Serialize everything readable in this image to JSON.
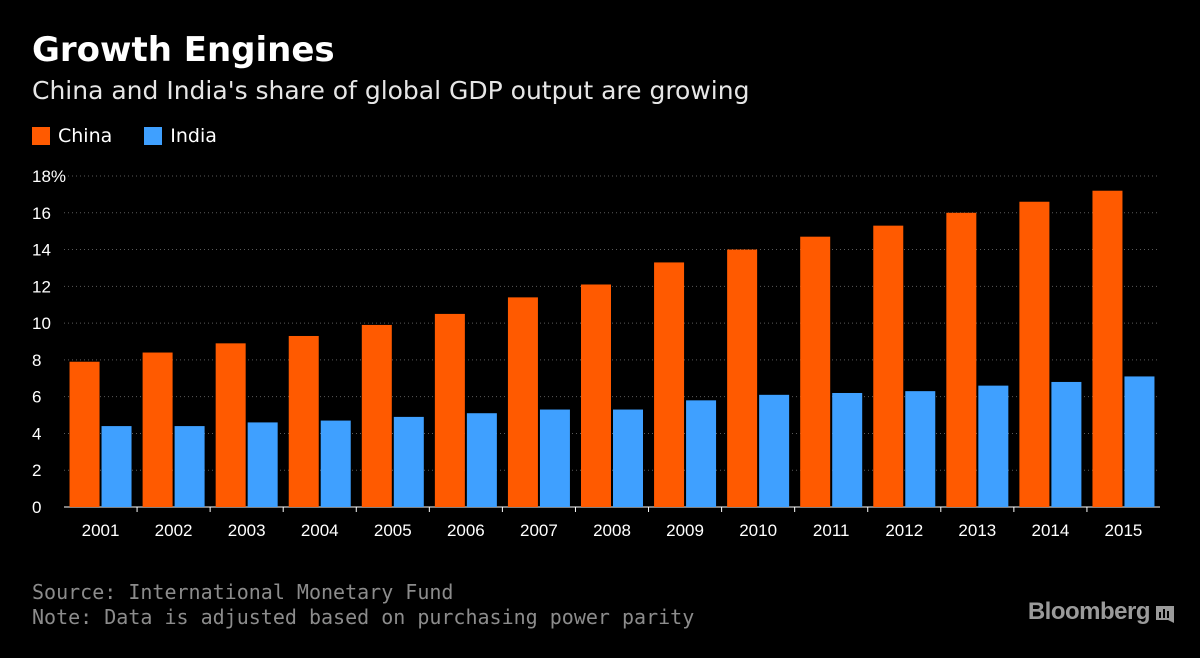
{
  "chart_data": {
    "type": "bar",
    "title": "Growth Engines",
    "subtitle": "China and India's share of global GDP output are growing",
    "categories": [
      "2001",
      "2002",
      "2003",
      "2004",
      "2005",
      "2006",
      "2007",
      "2008",
      "2009",
      "2010",
      "2011",
      "2012",
      "2013",
      "2014",
      "2015"
    ],
    "series": [
      {
        "name": "China",
        "color": "#ff5a00",
        "values": [
          7.9,
          8.4,
          8.9,
          9.3,
          9.9,
          10.5,
          11.4,
          12.1,
          13.3,
          14.0,
          14.7,
          15.3,
          16.0,
          16.6,
          17.2
        ]
      },
      {
        "name": "India",
        "color": "#3fa0ff",
        "values": [
          4.4,
          4.4,
          4.6,
          4.7,
          4.9,
          5.1,
          5.3,
          5.3,
          5.8,
          6.1,
          6.2,
          6.3,
          6.6,
          6.8,
          7.1
        ]
      }
    ],
    "ylim": [
      0,
      18
    ],
    "yticks": [
      "0",
      "2",
      "4",
      "6",
      "8",
      "10",
      "12",
      "14",
      "16",
      "18%"
    ],
    "grid": true,
    "legend_position": "top-left"
  },
  "footer": {
    "source": "Source: International Monetary Fund",
    "note": "Note: Data is adjusted based on purchasing power parity"
  },
  "brand": {
    "name": "Bloomberg"
  }
}
